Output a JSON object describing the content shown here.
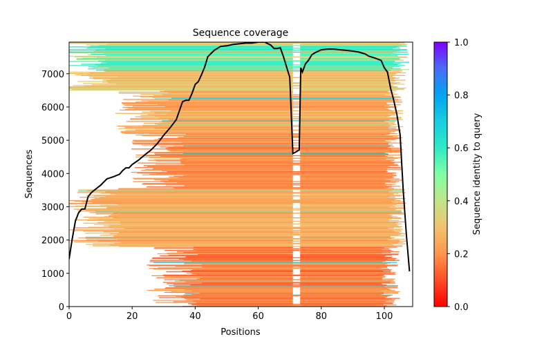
{
  "chart_data": {
    "type": "heatmap",
    "title": "Sequence coverage",
    "xlabel": "Positions",
    "ylabel": "Sequences",
    "xlim": [
      0,
      109
    ],
    "ylim": [
      0,
      7950
    ],
    "xticks": [
      0,
      20,
      40,
      60,
      80,
      100
    ],
    "yticks": [
      0,
      1000,
      2000,
      3000,
      4000,
      5000,
      6000,
      7000
    ],
    "xtick_labels": [
      "0",
      "20",
      "40",
      "60",
      "80",
      "100"
    ],
    "ytick_labels": [
      "0",
      "1000",
      "2000",
      "3000",
      "4000",
      "5000",
      "6000",
      "7000"
    ],
    "grid": false,
    "colorbar": {
      "label": "Sequence identity to query",
      "range": [
        0.0,
        1.0
      ],
      "ticks": [
        0.0,
        0.2,
        0.4,
        0.6,
        0.8,
        1.0
      ],
      "tick_labels": [
        "0.0",
        "0.2",
        "0.4",
        "0.6",
        "0.8",
        "1.0"
      ],
      "colormap": "rainbow_r",
      "placement": "right"
    },
    "identity_bands": [
      {
        "seq_from": 0,
        "seq_to": 1800,
        "identity": 0.17,
        "start_pos": 30,
        "end_pos": 105
      },
      {
        "seq_from": 1800,
        "seq_to": 3550,
        "identity": 0.25,
        "start_pos": 5,
        "end_pos": 107
      },
      {
        "seq_from": 3550,
        "seq_to": 5200,
        "identity": 0.19,
        "start_pos": 25,
        "end_pos": 106
      },
      {
        "seq_from": 5200,
        "seq_to": 6500,
        "identity": 0.24,
        "start_pos": 20,
        "end_pos": 106
      },
      {
        "seq_from": 6500,
        "seq_to": 7100,
        "identity": 0.3,
        "start_pos": 3,
        "end_pos": 107
      },
      {
        "seq_from": 7100,
        "seq_to": 7950,
        "identity": 0.58,
        "start_pos": 1,
        "end_pos": 108
      }
    ],
    "gap_positions": [
      71,
      73
    ],
    "coverage_line": {
      "name": "coverage",
      "color": "#000000",
      "x": [
        0,
        1,
        2,
        3,
        4,
        5,
        6,
        7,
        8,
        10,
        12,
        14,
        16,
        17,
        18,
        19,
        20,
        22,
        24,
        26,
        28,
        30,
        32,
        34,
        35,
        36,
        37,
        38,
        39,
        40,
        41,
        42,
        43,
        44,
        46,
        48,
        50,
        52,
        54,
        56,
        58,
        60,
        62,
        64,
        65,
        66,
        67,
        68,
        69,
        70,
        71,
        72,
        73,
        73.5,
        74,
        75,
        76,
        77,
        78,
        80,
        82,
        84,
        86,
        88,
        90,
        92,
        94,
        95,
        97,
        99,
        100,
        101,
        102,
        103,
        104,
        105,
        106,
        107,
        108
      ],
      "y": [
        1430,
        2050,
        2570,
        2820,
        2930,
        2930,
        3300,
        3420,
        3500,
        3650,
        3840,
        3900,
        3980,
        4090,
        4170,
        4170,
        4270,
        4400,
        4560,
        4710,
        4900,
        5150,
        5370,
        5620,
        5890,
        6160,
        6200,
        6200,
        6410,
        6680,
        6760,
        6970,
        7200,
        7510,
        7700,
        7820,
        7840,
        7880,
        7900,
        7920,
        7920,
        7950,
        7950,
        7860,
        7760,
        7760,
        7780,
        7510,
        7200,
        6890,
        4600,
        4650,
        4710,
        7180,
        7050,
        7300,
        7410,
        7570,
        7630,
        7720,
        7740,
        7740,
        7720,
        7700,
        7680,
        7650,
        7590,
        7530,
        7470,
        7400,
        7180,
        7050,
        6560,
        6200,
        5770,
        5170,
        3500,
        2160,
        1060
      ]
    }
  }
}
